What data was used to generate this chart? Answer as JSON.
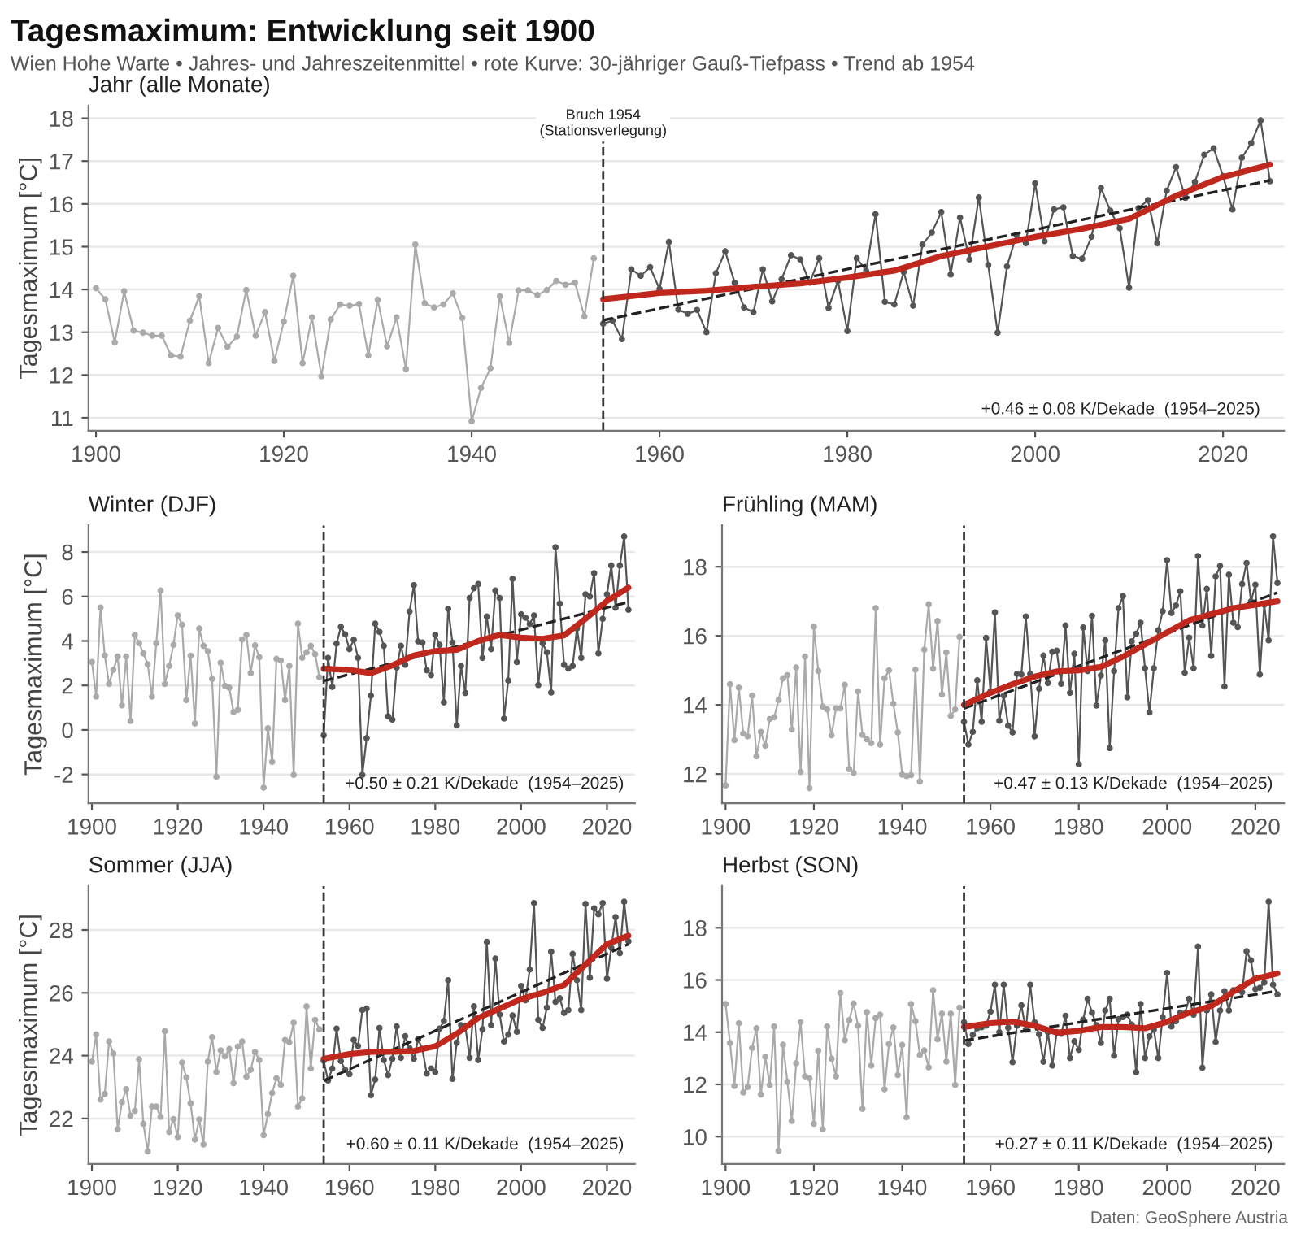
{
  "chart_data": [
    {
      "type": "line",
      "title": "Tagesmaximum: Entwicklung seit 1900",
      "subtitle": "Wien Hohe Warte • Jahres- und Jahreszeitenmittel • rote Kurve: 30-jähriger Gauß-Tiefpass • Trend ab 1954",
      "ylabel": "Tagesmaximum [°C]",
      "xlim": [
        1899.2,
        2026.5
      ],
      "xticks": [
        1900,
        1920,
        1940,
        1960,
        1980,
        2000,
        2020
      ],
      "ylim": [
        10.7,
        18.3
      ],
      "yticks": [
        11,
        12,
        13,
        14,
        15,
        16,
        17,
        18
      ],
      "grid": "y",
      "annotations": [
        "Jahr (alle Monate)",
        "+0.46 ± 0.08 K/Dekade  (1954–2025)"
      ],
      "ref_lines": [
        {
          "axis": "x",
          "value": 1954,
          "label": "Bruch 1954\n(Stationsverlegung)",
          "line_style": "dashed",
          "color": "#333333"
        }
      ],
      "series": [
        {
          "color": "#aaaaaa",
          "marker": "circle",
          "x": [
            1900,
            1901,
            1902,
            1903,
            1904,
            1905,
            1906,
            1907,
            1908,
            1909,
            1910,
            1911,
            1912,
            1913,
            1914,
            1915,
            1916,
            1917,
            1918,
            1919,
            1920,
            1921,
            1922,
            1923,
            1924,
            1925,
            1926,
            1927,
            1928,
            1929,
            1930,
            1931,
            1932,
            1933,
            1934,
            1935,
            1936,
            1937,
            1938,
            1939,
            1940,
            1941,
            1942,
            1943,
            1944,
            1945,
            1946,
            1947,
            1948,
            1949,
            1950,
            1951,
            1952,
            1953
          ],
          "values": [
            14.03,
            13.77,
            12.76,
            13.96,
            13.04,
            12.99,
            12.92,
            12.92,
            12.46,
            12.43,
            13.27,
            13.84,
            12.28,
            13.1,
            12.66,
            12.9,
            13.99,
            12.92,
            13.47,
            12.33,
            13.25,
            14.32,
            12.28,
            13.35,
            11.97,
            13.3,
            13.65,
            13.62,
            13.66,
            12.46,
            13.76,
            12.67,
            13.35,
            12.14,
            15.05,
            13.68,
            13.58,
            13.65,
            13.91,
            13.33,
            10.92,
            11.7,
            12.16,
            13.84,
            12.75,
            13.98,
            13.98,
            13.87,
            13.99,
            14.2,
            14.11,
            14.16,
            13.37,
            14.73
          ]
        },
        {
          "color": "#555555",
          "marker": "circle",
          "x": [
            1954,
            1955,
            1956,
            1957,
            1958,
            1959,
            1960,
            1961,
            1962,
            1963,
            1964,
            1965,
            1966,
            1967,
            1968,
            1969,
            1970,
            1971,
            1972,
            1973,
            1974,
            1975,
            1976,
            1977,
            1978,
            1979,
            1980,
            1981,
            1982,
            1983,
            1984,
            1985,
            1986,
            1987,
            1988,
            1989,
            1990,
            1991,
            1992,
            1993,
            1994,
            1995,
            1996,
            1997,
            1998,
            1999,
            2000,
            2001,
            2002,
            2003,
            2004,
            2005,
            2006,
            2007,
            2008,
            2009,
            2010,
            2011,
            2012,
            2013,
            2014,
            2015,
            2016,
            2017,
            2018,
            2019,
            2020,
            2021,
            2022,
            2023,
            2024,
            2025
          ],
          "values": [
            13.2,
            13.27,
            12.84,
            14.47,
            14.32,
            14.52,
            14.01,
            15.11,
            13.53,
            13.43,
            13.52,
            13.0,
            14.38,
            14.89,
            14.16,
            13.58,
            13.47,
            14.47,
            13.72,
            14.24,
            14.8,
            14.7,
            14.16,
            14.73,
            13.57,
            14.2,
            13.03,
            14.73,
            14.44,
            15.76,
            13.71,
            13.65,
            14.41,
            13.62,
            15.05,
            15.33,
            15.81,
            14.35,
            15.68,
            14.7,
            16.15,
            14.57,
            12.99,
            14.54,
            15.27,
            15.08,
            16.48,
            15.13,
            15.87,
            15.92,
            14.78,
            14.72,
            15.23,
            16.37,
            15.84,
            15.43,
            14.04,
            15.9,
            16.09,
            15.08,
            16.31,
            16.86,
            16.14,
            16.51,
            17.15,
            17.3,
            16.65,
            15.87,
            17.08,
            17.42,
            17.95,
            16.53
          ]
        },
        {
          "color": "#222222",
          "line_style": "dashed",
          "marker": "none",
          "x": [
            1954,
            2025
          ],
          "values": [
            13.28,
            16.55
          ]
        },
        {
          "color": "#c0281e",
          "marker": "none",
          "x": [
            1954,
            1960,
            1965,
            1970,
            1975,
            1980,
            1985,
            1990,
            1995,
            2000,
            2005,
            2010,
            2015,
            2020,
            2025
          ],
          "values": [
            13.77,
            13.92,
            13.97,
            14.06,
            14.14,
            14.28,
            14.44,
            14.78,
            15.01,
            15.23,
            15.42,
            15.65,
            16.19,
            16.63,
            16.92
          ]
        }
      ]
    },
    {
      "type": "line",
      "title": "Winter (DJF)",
      "ylabel": "Tagesmaximum [°C]",
      "xlim": [
        1899.2,
        2026.5
      ],
      "xticks": [
        1900,
        1920,
        1940,
        1960,
        1980,
        2000,
        2020
      ],
      "ylim": [
        -3.3,
        9.2
      ],
      "yticks": [
        -2,
        0,
        2,
        4,
        6,
        8
      ],
      "grid": "y",
      "annotations": [
        "+0.50 ± 0.21 K/Dekade  (1954–2025)"
      ],
      "ref_lines": [
        {
          "axis": "x",
          "value": 1954,
          "line_style": "dashed",
          "color": "#333333"
        }
      ],
      "series": [
        {
          "color": "#aaaaaa",
          "marker": "circle",
          "x": [
            1900,
            1901,
            1902,
            1903,
            1904,
            1905,
            1906,
            1907,
            1908,
            1909,
            1910,
            1911,
            1912,
            1913,
            1914,
            1915,
            1916,
            1917,
            1918,
            1919,
            1920,
            1921,
            1922,
            1923,
            1924,
            1925,
            1926,
            1927,
            1928,
            1929,
            1930,
            1931,
            1932,
            1933,
            1934,
            1935,
            1936,
            1937,
            1938,
            1939,
            1940,
            1941,
            1942,
            1943,
            1944,
            1945,
            1946,
            1947,
            1948,
            1949,
            1950,
            1951,
            1952,
            1953
          ],
          "values": [
            3.05,
            1.5,
            5.5,
            3.35,
            2.07,
            2.7,
            3.3,
            1.1,
            3.3,
            0.4,
            4.27,
            3.9,
            3.44,
            2.95,
            1.5,
            3.9,
            6.27,
            2.07,
            2.88,
            3.83,
            5.15,
            4.73,
            1.34,
            3.34,
            0.29,
            4.56,
            3.78,
            3.54,
            2.29,
            -2.1,
            3.02,
            1.98,
            1.9,
            0.8,
            0.9,
            4.07,
            4.27,
            2.56,
            3.8,
            3.27,
            -2.6,
            0.07,
            -1.44,
            3.2,
            3.12,
            1.34,
            2.88,
            -2.02,
            4.78,
            3.24,
            3.49,
            3.78,
            3.41,
            2.37
          ]
        },
        {
          "color": "#555555",
          "marker": "circle",
          "x": [
            1954,
            1955,
            1956,
            1957,
            1958,
            1959,
            1960,
            1961,
            1962,
            1963,
            1964,
            1965,
            1966,
            1967,
            1968,
            1969,
            1970,
            1971,
            1972,
            1973,
            1974,
            1975,
            1976,
            1977,
            1978,
            1979,
            1980,
            1981,
            1982,
            1983,
            1984,
            1985,
            1986,
            1987,
            1988,
            1989,
            1990,
            1991,
            1992,
            1993,
            1994,
            1995,
            1996,
            1997,
            1998,
            1999,
            2000,
            2001,
            2002,
            2003,
            2004,
            2005,
            2006,
            2007,
            2008,
            2009,
            2010,
            2011,
            2012,
            2013,
            2014,
            2015,
            2016,
            2017,
            2018,
            2019,
            2020,
            2021,
            2022,
            2023,
            2024,
            2025
          ],
          "values": [
            -0.24,
            3.24,
            1.93,
            3.88,
            4.63,
            4.3,
            3.63,
            4.05,
            3.24,
            -2.02,
            -0.37,
            1.54,
            4.78,
            4.41,
            3.78,
            0.61,
            0.46,
            2.8,
            3.78,
            2.93,
            5.32,
            6.51,
            3.98,
            3.93,
            2.68,
            2.46,
            4.27,
            3.83,
            1.24,
            5.44,
            3.93,
            0.2,
            2.88,
            1.66,
            5.93,
            6.37,
            6.56,
            3.24,
            5.1,
            3.63,
            6.27,
            5.93,
            0.51,
            2.22,
            6.8,
            3.05,
            5.2,
            5.05,
            4.76,
            5.15,
            2.02,
            3.9,
            3.49,
            1.68,
            8.22,
            5.68,
            2.93,
            2.76,
            2.88,
            4.56,
            3.24,
            6.1,
            6.0,
            7.05,
            3.44,
            5.0,
            6.1,
            7.39,
            5.49,
            7.39,
            8.7,
            5.4
          ]
        },
        {
          "color": "#222222",
          "line_style": "dashed",
          "marker": "none",
          "x": [
            1954,
            2025
          ],
          "values": [
            2.2,
            5.75
          ]
        },
        {
          "color": "#c0281e",
          "marker": "none",
          "x": [
            1954,
            1960,
            1965,
            1970,
            1975,
            1980,
            1985,
            1990,
            1995,
            2000,
            2005,
            2010,
            2015,
            2020,
            2025
          ],
          "values": [
            2.75,
            2.7,
            2.55,
            2.9,
            3.35,
            3.55,
            3.6,
            4.0,
            4.27,
            4.15,
            4.1,
            4.25,
            5.0,
            5.8,
            6.4
          ]
        }
      ]
    },
    {
      "type": "line",
      "title": "Frühling (MAM)",
      "xlim": [
        1899.2,
        2026.5
      ],
      "xticks": [
        1900,
        1920,
        1940,
        1960,
        1980,
        2000,
        2020
      ],
      "ylim": [
        11.15,
        19.2
      ],
      "yticks": [
        12,
        14,
        16,
        18
      ],
      "grid": "y",
      "annotations": [
        "+0.47 ± 0.13 K/Dekade  (1954–2025)"
      ],
      "ref_lines": [
        {
          "axis": "x",
          "value": 1954,
          "line_style": "dashed",
          "color": "#333333"
        }
      ],
      "series": [
        {
          "color": "#aaaaaa",
          "marker": "circle",
          "x": [
            1900,
            1901,
            1902,
            1903,
            1904,
            1905,
            1906,
            1907,
            1908,
            1909,
            1910,
            1911,
            1912,
            1913,
            1914,
            1915,
            1916,
            1917,
            1918,
            1919,
            1920,
            1921,
            1922,
            1923,
            1924,
            1925,
            1926,
            1927,
            1928,
            1929,
            1930,
            1931,
            1932,
            1933,
            1934,
            1935,
            1936,
            1937,
            1938,
            1939,
            1940,
            1941,
            1942,
            1943,
            1944,
            1945,
            1946,
            1947,
            1948,
            1949,
            1950,
            1951,
            1952,
            1953
          ],
          "values": [
            11.67,
            14.6,
            12.98,
            14.5,
            13.17,
            13.09,
            14.27,
            12.51,
            13.22,
            12.82,
            13.59,
            13.64,
            14.14,
            14.77,
            14.86,
            13.29,
            15.08,
            12.06,
            15.4,
            11.59,
            16.26,
            14.98,
            13.95,
            13.87,
            13.12,
            13.9,
            13.9,
            14.58,
            12.14,
            12.03,
            14.39,
            13.13,
            13.0,
            12.89,
            16.8,
            12.85,
            14.77,
            15.0,
            14.03,
            13.2,
            11.98,
            11.94,
            11.97,
            15.02,
            11.78,
            15.6,
            16.91,
            15.05,
            16.43,
            14.3,
            15.52,
            13.68,
            13.87,
            15.97
          ]
        },
        {
          "color": "#555555",
          "marker": "circle",
          "x": [
            1954,
            1955,
            1956,
            1957,
            1958,
            1959,
            1960,
            1961,
            1962,
            1963,
            1964,
            1965,
            1966,
            1967,
            1968,
            1969,
            1970,
            1971,
            1972,
            1973,
            1974,
            1975,
            1976,
            1977,
            1978,
            1979,
            1980,
            1981,
            1982,
            1983,
            1984,
            1985,
            1986,
            1987,
            1988,
            1989,
            1990,
            1991,
            1992,
            1993,
            1994,
            1995,
            1996,
            1997,
            1998,
            1999,
            2000,
            2001,
            2002,
            2003,
            2004,
            2005,
            2006,
            2007,
            2008,
            2009,
            2010,
            2011,
            2012,
            2013,
            2014,
            2015,
            2016,
            2017,
            2018,
            2019,
            2020,
            2021,
            2022,
            2023,
            2024,
            2025
          ],
          "values": [
            13.51,
            12.85,
            13.22,
            14.71,
            13.51,
            15.94,
            14.39,
            16.68,
            13.54,
            14.27,
            13.4,
            13.2,
            14.9,
            14.88,
            16.56,
            14.9,
            13.09,
            14.47,
            15.43,
            14.63,
            15.54,
            15.57,
            14.61,
            16.3,
            14.35,
            15.48,
            12.28,
            16.24,
            14.98,
            16.58,
            13.98,
            14.85,
            15.87,
            12.75,
            14.98,
            16.8,
            17.15,
            14.22,
            15.84,
            16.06,
            16.38,
            15.06,
            13.78,
            15.06,
            16.16,
            16.71,
            18.19,
            16.66,
            16.88,
            17.29,
            14.93,
            15.95,
            15.06,
            18.31,
            16.3,
            17.36,
            15.42,
            17.72,
            18.02,
            14.53,
            17.77,
            16.38,
            16.25,
            17.5,
            18.11,
            17.0,
            17.48,
            14.88,
            16.9,
            15.87,
            18.88,
            17.53
          ]
        },
        {
          "color": "#222222",
          "line_style": "dashed",
          "marker": "none",
          "x": [
            1954,
            2025
          ],
          "values": [
            13.9,
            17.25
          ]
        },
        {
          "color": "#c0281e",
          "marker": "none",
          "x": [
            1954,
            1960,
            1965,
            1970,
            1975,
            1980,
            1985,
            1990,
            1995,
            2000,
            2005,
            2010,
            2015,
            2020,
            2025
          ],
          "values": [
            14.0,
            14.35,
            14.6,
            14.82,
            14.97,
            15.0,
            15.1,
            15.4,
            15.75,
            16.1,
            16.45,
            16.63,
            16.8,
            16.9,
            17.0
          ]
        }
      ]
    },
    {
      "type": "line",
      "title": "Sommer (JJA)",
      "ylabel": "Tagesmaximum [°C]",
      "xlim": [
        1899.2,
        2026.5
      ],
      "xticks": [
        1900,
        1920,
        1940,
        1960,
        1980,
        2000,
        2020
      ],
      "ylim": [
        20.55,
        29.4
      ],
      "yticks": [
        22,
        24,
        26,
        28
      ],
      "grid": "y",
      "annotations": [
        "+0.60 ± 0.11 K/Dekade  (1954–2025)"
      ],
      "ref_lines": [
        {
          "axis": "x",
          "value": 1954,
          "line_style": "dashed",
          "color": "#333333"
        }
      ],
      "series": [
        {
          "color": "#aaaaaa",
          "marker": "circle",
          "x": [
            1900,
            1901,
            1902,
            1903,
            1904,
            1905,
            1906,
            1907,
            1908,
            1909,
            1910,
            1911,
            1912,
            1913,
            1914,
            1915,
            1916,
            1917,
            1918,
            1919,
            1920,
            1921,
            1922,
            1923,
            1924,
            1925,
            1926,
            1927,
            1928,
            1929,
            1930,
            1931,
            1932,
            1933,
            1934,
            1935,
            1936,
            1937,
            1938,
            1939,
            1940,
            1941,
            1942,
            1943,
            1944,
            1945,
            1946,
            1947,
            1948,
            1949,
            1950,
            1951,
            1952,
            1953
          ],
          "values": [
            23.81,
            24.67,
            22.6,
            22.78,
            24.45,
            24.07,
            21.66,
            22.52,
            22.93,
            22.09,
            22.24,
            23.88,
            21.83,
            20.95,
            22.38,
            22.38,
            22.05,
            24.78,
            21.57,
            21.98,
            21.41,
            23.78,
            23.31,
            22.48,
            21.33,
            21.97,
            21.17,
            23.81,
            24.59,
            23.48,
            24.17,
            23.98,
            24.21,
            23.12,
            24.29,
            24.45,
            23.33,
            23.55,
            24.12,
            23.86,
            21.47,
            22.14,
            22.81,
            23.28,
            23.07,
            24.5,
            24.43,
            25.05,
            22.38,
            22.64,
            25.57,
            23.59,
            25.14,
            24.84
          ]
        },
        {
          "color": "#555555",
          "marker": "circle",
          "x": [
            1954,
            1955,
            1956,
            1957,
            1958,
            1959,
            1960,
            1961,
            1962,
            1963,
            1964,
            1965,
            1966,
            1967,
            1968,
            1969,
            1970,
            1971,
            1972,
            1973,
            1974,
            1975,
            1976,
            1977,
            1978,
            1979,
            1980,
            1981,
            1982,
            1983,
            1984,
            1985,
            1986,
            1987,
            1988,
            1989,
            1990,
            1991,
            1992,
            1993,
            1994,
            1995,
            1996,
            1997,
            1998,
            1999,
            2000,
            2001,
            2002,
            2003,
            2004,
            2005,
            2006,
            2007,
            2008,
            2009,
            2010,
            2011,
            2012,
            2013,
            2014,
            2015,
            2016,
            2017,
            2018,
            2019,
            2020,
            2021,
            2022,
            2023,
            2024,
            2025
          ],
          "values": [
            23.84,
            23.21,
            23.59,
            24.86,
            23.83,
            23.55,
            23.41,
            24.5,
            24.31,
            25.45,
            25.5,
            22.74,
            23.24,
            24.88,
            23.86,
            23.38,
            23.9,
            24.93,
            23.93,
            24.62,
            24.24,
            23.9,
            24.52,
            24.21,
            23.43,
            23.59,
            23.48,
            24.86,
            25.1,
            26.4,
            23.26,
            24.41,
            24.97,
            24.93,
            23.93,
            25.57,
            23.86,
            24.84,
            27.62,
            24.97,
            27.09,
            25.31,
            24.45,
            24.67,
            25.28,
            24.76,
            26.22,
            25.76,
            26.74,
            28.86,
            25.14,
            24.88,
            25.53,
            27.31,
            25.71,
            25.83,
            25.36,
            25.45,
            27.24,
            26.4,
            25.45,
            28.83,
            26.48,
            28.69,
            28.5,
            28.86,
            26.45,
            27.43,
            28.41,
            27.26,
            28.9,
            27.64
          ]
        },
        {
          "color": "#222222",
          "line_style": "dashed",
          "marker": "none",
          "x": [
            1954,
            2025
          ],
          "values": [
            23.2,
            27.55
          ]
        },
        {
          "color": "#c0281e",
          "marker": "none",
          "x": [
            1954,
            1960,
            1965,
            1970,
            1975,
            1980,
            1985,
            1990,
            1995,
            2000,
            2005,
            2010,
            2015,
            2020,
            2025
          ],
          "values": [
            23.9,
            24.05,
            24.12,
            24.12,
            24.15,
            24.3,
            24.7,
            25.2,
            25.5,
            25.8,
            26.0,
            26.25,
            26.9,
            27.55,
            27.82
          ]
        }
      ]
    },
    {
      "type": "line",
      "title": "Herbst (SON)",
      "xlim": [
        1899.2,
        2026.5
      ],
      "xticks": [
        1900,
        1920,
        1940,
        1960,
        1980,
        2000,
        2020
      ],
      "ylim": [
        8.95,
        19.6
      ],
      "yticks": [
        10,
        12,
        14,
        16,
        18
      ],
      "grid": "y",
      "annotations": [
        "+0.27 ± 0.11 K/Dekade  (1954–2025)",
        "Daten: GeoSphere Austria"
      ],
      "ref_lines": [
        {
          "axis": "x",
          "value": 1954,
          "line_style": "dashed",
          "color": "#333333"
        }
      ],
      "series": [
        {
          "color": "#aaaaaa",
          "marker": "circle",
          "x": [
            1900,
            1901,
            1902,
            1903,
            1904,
            1905,
            1906,
            1907,
            1908,
            1909,
            1910,
            1911,
            1912,
            1913,
            1914,
            1915,
            1916,
            1917,
            1918,
            1919,
            1920,
            1921,
            1922,
            1923,
            1924,
            1925,
            1926,
            1927,
            1928,
            1929,
            1930,
            1931,
            1932,
            1933,
            1934,
            1935,
            1936,
            1937,
            1938,
            1939,
            1940,
            1941,
            1942,
            1943,
            1944,
            1945,
            1946,
            1947,
            1948,
            1949,
            1950,
            1951,
            1952,
            1953
          ],
          "values": [
            15.08,
            13.59,
            11.94,
            14.34,
            11.69,
            11.9,
            13.39,
            14.15,
            11.61,
            13.06,
            11.98,
            14.22,
            9.45,
            13.52,
            12.1,
            10.6,
            12.81,
            14.38,
            12.31,
            12.23,
            10.49,
            13.29,
            10.28,
            14.22,
            12.98,
            12.31,
            15.5,
            13.69,
            14.46,
            15.1,
            14.25,
            11.06,
            14.77,
            12.72,
            14.54,
            14.67,
            11.81,
            13.55,
            14.18,
            12.36,
            13.51,
            10.74,
            15.08,
            14.42,
            13.13,
            13.3,
            12.65,
            15.61,
            13.73,
            14.71,
            12.87,
            14.71,
            11.98,
            14.94
          ]
        },
        {
          "color": "#555555",
          "marker": "circle",
          "x": [
            1954,
            1955,
            1956,
            1957,
            1958,
            1959,
            1960,
            1961,
            1962,
            1963,
            1964,
            1965,
            1966,
            1967,
            1968,
            1969,
            1970,
            1971,
            1972,
            1973,
            1974,
            1975,
            1976,
            1977,
            1978,
            1979,
            1980,
            1981,
            1982,
            1983,
            1984,
            1985,
            1986,
            1987,
            1988,
            1989,
            1990,
            1991,
            1992,
            1993,
            1994,
            1995,
            1996,
            1997,
            1998,
            1999,
            2000,
            2001,
            2002,
            2003,
            2004,
            2005,
            2006,
            2007,
            2008,
            2009,
            2010,
            2011,
            2012,
            2013,
            2014,
            2015,
            2016,
            2017,
            2018,
            2019,
            2020,
            2021,
            2022,
            2023,
            2024,
            2025
          ],
          "values": [
            14.38,
            13.55,
            13.9,
            14.15,
            14.19,
            14.25,
            14.79,
            15.82,
            14.0,
            15.82,
            14.17,
            12.85,
            14.25,
            15.03,
            14.1,
            15.82,
            14.38,
            13.92,
            12.87,
            14.0,
            12.72,
            14.0,
            13.94,
            14.63,
            13.01,
            13.65,
            13.32,
            14.48,
            15.28,
            14.75,
            14.27,
            13.59,
            14.83,
            15.28,
            13.1,
            14.5,
            14.58,
            14.67,
            14.29,
            12.47,
            15.08,
            13.01,
            13.84,
            14.1,
            13.01,
            14.58,
            16.27,
            14.22,
            14.42,
            14.75,
            14.71,
            15.28,
            14.67,
            17.28,
            12.64,
            14.83,
            15.45,
            13.63,
            14.83,
            15.57,
            14.83,
            15.61,
            15.61,
            15.53,
            17.1,
            16.75,
            15.65,
            15.7,
            15.9,
            19.0,
            15.82,
            15.45
          ]
        },
        {
          "color": "#222222",
          "line_style": "dashed",
          "marker": "none",
          "x": [
            1954,
            2025
          ],
          "values": [
            13.68,
            15.58
          ]
        },
        {
          "color": "#c0281e",
          "marker": "none",
          "x": [
            1954,
            1960,
            1965,
            1970,
            1975,
            1980,
            1985,
            1990,
            1995,
            2000,
            2005,
            2010,
            2015,
            2020,
            2025
          ],
          "values": [
            14.2,
            14.35,
            14.4,
            14.25,
            13.98,
            14.05,
            14.2,
            14.2,
            14.15,
            14.4,
            14.75,
            15.0,
            15.55,
            16.05,
            16.25
          ]
        }
      ]
    }
  ]
}
